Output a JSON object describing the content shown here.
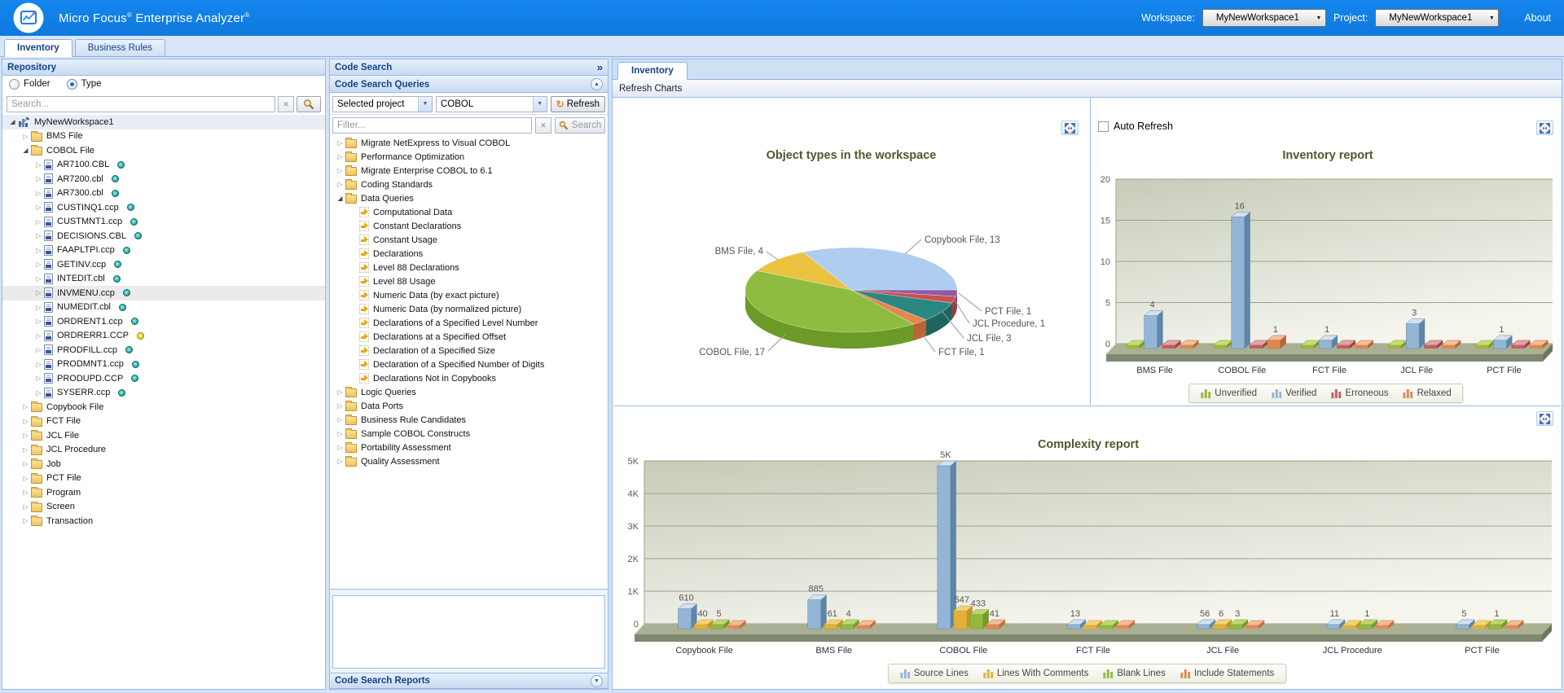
{
  "header": {
    "brand_a": "Micro Focus",
    "brand_b": "Enterprise Analyzer",
    "reg": "®",
    "workspace_label": "Workspace:",
    "workspace_value": "MyNewWorkspace1",
    "project_label": "Project:",
    "project_value": "MyNewWorkspace1",
    "about_label": "About"
  },
  "main_tabs": [
    {
      "label": "Inventory",
      "active": true
    },
    {
      "label": "Business Rules",
      "active": false
    }
  ],
  "repository": {
    "title": "Repository",
    "radios": [
      {
        "label": "Folder",
        "selected": false
      },
      {
        "label": "Type",
        "selected": true
      }
    ],
    "search_placeholder": "Search...",
    "tree": [
      {
        "label": "MyNewWorkspace1",
        "level": 0,
        "icon": "workspace",
        "expand": "open",
        "sel": "ws"
      },
      {
        "label": "BMS File",
        "level": 1,
        "icon": "folder",
        "expand": "closed"
      },
      {
        "label": "COBOL File",
        "level": 1,
        "icon": "folder",
        "expand": "open"
      },
      {
        "label": "AR7100.CBL",
        "level": 2,
        "icon": "file",
        "expand": "closed",
        "dot": "teal"
      },
      {
        "label": "AR7200.cbl",
        "level": 2,
        "icon": "file",
        "expand": "closed",
        "dot": "teal"
      },
      {
        "label": "AR7300.cbl",
        "level": 2,
        "icon": "file",
        "expand": "closed",
        "dot": "teal"
      },
      {
        "label": "CUSTINQ1.ccp",
        "level": 2,
        "icon": "file",
        "expand": "closed",
        "dot": "teal"
      },
      {
        "label": "CUSTMNT1.ccp",
        "level": 2,
        "icon": "file",
        "expand": "closed",
        "dot": "teal"
      },
      {
        "label": "DECISIONS.CBL",
        "level": 2,
        "icon": "file",
        "expand": "closed",
        "dot": "teal"
      },
      {
        "label": "FAAPLTPI.ccp",
        "level": 2,
        "icon": "file",
        "expand": "closed",
        "dot": "teal"
      },
      {
        "label": "GETINV.ccp",
        "level": 2,
        "icon": "file",
        "expand": "closed",
        "dot": "teal"
      },
      {
        "label": "INTEDIT.cbl",
        "level": 2,
        "icon": "file",
        "expand": "closed",
        "dot": "teal"
      },
      {
        "label": "INVMENU.ccp",
        "level": 2,
        "icon": "file",
        "expand": "closed",
        "dot": "teal",
        "sel": "item"
      },
      {
        "label": "NUMEDIT.cbl",
        "level": 2,
        "icon": "file",
        "expand": "closed",
        "dot": "teal"
      },
      {
        "label": "ORDRENT1.ccp",
        "level": 2,
        "icon": "file",
        "expand": "closed",
        "dot": "teal"
      },
      {
        "label": "ORDRERR1.CCP",
        "level": 2,
        "icon": "file",
        "expand": "closed",
        "dot": "yellow"
      },
      {
        "label": "PRODFILL.ccp",
        "level": 2,
        "icon": "file",
        "expand": "closed",
        "dot": "teal"
      },
      {
        "label": "PRODMNT1.ccp",
        "level": 2,
        "icon": "file",
        "expand": "closed",
        "dot": "teal"
      },
      {
        "label": "PRODUPD.CCP",
        "level": 2,
        "icon": "file",
        "expand": "closed",
        "dot": "teal"
      },
      {
        "label": "SYSERR.ccp",
        "level": 2,
        "icon": "file",
        "expand": "closed",
        "dot": "teal"
      },
      {
        "label": "Copybook File",
        "level": 1,
        "icon": "folder",
        "expand": "closed"
      },
      {
        "label": "FCT File",
        "level": 1,
        "icon": "folder",
        "expand": "closed"
      },
      {
        "label": "JCL File",
        "level": 1,
        "icon": "folder",
        "expand": "closed"
      },
      {
        "label": "JCL Procedure",
        "level": 1,
        "icon": "folder",
        "expand": "closed"
      },
      {
        "label": "Job",
        "level": 1,
        "icon": "folder",
        "expand": "closed"
      },
      {
        "label": "PCT File",
        "level": 1,
        "icon": "folder",
        "expand": "closed"
      },
      {
        "label": "Program",
        "level": 1,
        "icon": "folder",
        "expand": "closed"
      },
      {
        "label": "Screen",
        "level": 1,
        "icon": "folder",
        "expand": "closed"
      },
      {
        "label": "Transaction",
        "level": 1,
        "icon": "folder",
        "expand": "closed"
      }
    ]
  },
  "code_search": {
    "title": "Code Search",
    "queries_title": "Code Search Queries",
    "project_dropdown_value": "Selected project",
    "language_dropdown_value": "COBOL",
    "refresh_label": "Refresh",
    "filter_placeholder": "Filter...",
    "search_label": "Search",
    "reports_title": "Code Search Reports",
    "tree": [
      {
        "label": "Migrate NetExpress to Visual COBOL",
        "level": 0,
        "icon": "folder",
        "expand": "closed"
      },
      {
        "label": "Performance Optimization",
        "level": 0,
        "icon": "folder",
        "expand": "closed"
      },
      {
        "label": "Migrate Enterprise COBOL to 6.1",
        "level": 0,
        "icon": "folder",
        "expand": "closed"
      },
      {
        "label": "Coding Standards",
        "level": 0,
        "icon": "folder",
        "expand": "closed"
      },
      {
        "label": "Data Queries",
        "level": 0,
        "icon": "folder",
        "expand": "open"
      },
      {
        "label": "Computational Data",
        "level": 1,
        "icon": "query",
        "expand": "none"
      },
      {
        "label": "Constant Declarations",
        "level": 1,
        "icon": "query",
        "expand": "none"
      },
      {
        "label": "Constant Usage",
        "level": 1,
        "icon": "query",
        "expand": "none"
      },
      {
        "label": "Declarations",
        "level": 1,
        "icon": "query",
        "expand": "none"
      },
      {
        "label": "Level 88 Declarations",
        "level": 1,
        "icon": "query",
        "expand": "none"
      },
      {
        "label": "Level 88 Usage",
        "level": 1,
        "icon": "query",
        "expand": "none"
      },
      {
        "label": "Numeric Data (by exact picture)",
        "level": 1,
        "icon": "query",
        "expand": "none"
      },
      {
        "label": "Numeric Data (by normalized picture)",
        "level": 1,
        "icon": "query",
        "expand": "none"
      },
      {
        "label": "Declarations of a Specified Level Number",
        "level": 1,
        "icon": "query",
        "expand": "none"
      },
      {
        "label": "Declarations at a Specified Offset",
        "level": 1,
        "icon": "query",
        "expand": "none"
      },
      {
        "label": "Declaration of a Specified Size",
        "level": 1,
        "icon": "query",
        "expand": "none"
      },
      {
        "label": "Declaration of a Specified Number of Digits",
        "level": 1,
        "icon": "query",
        "expand": "none"
      },
      {
        "label": "Declarations Not in Copybooks",
        "level": 1,
        "icon": "query",
        "expand": "none"
      },
      {
        "label": "Logic Queries",
        "level": 0,
        "icon": "folder",
        "expand": "closed"
      },
      {
        "label": "Data Ports",
        "level": 0,
        "icon": "folder",
        "expand": "closed"
      },
      {
        "label": "Business Rule Candidates",
        "level": 0,
        "icon": "folder",
        "expand": "closed"
      },
      {
        "label": "Sample COBOL Constructs",
        "level": 0,
        "icon": "folder",
        "expand": "closed"
      },
      {
        "label": "Portability Assessment",
        "level": 0,
        "icon": "folder",
        "expand": "closed"
      },
      {
        "label": "Quality Assessment",
        "level": 0,
        "icon": "folder",
        "expand": "closed"
      }
    ]
  },
  "inventory_panel": {
    "tab": "Inventory",
    "toolbar": "Refresh Charts",
    "auto_refresh_label": "Auto Refresh"
  },
  "chart_data": [
    {
      "type": "pie",
      "title": "Object types in the workspace",
      "slices": [
        {
          "label": "PCT File",
          "value": 1,
          "color": "#8e5ba6",
          "dark": "#6d4385"
        },
        {
          "label": "JCL Procedure",
          "value": 1,
          "color": "#c95150",
          "dark": "#9e3c3b"
        },
        {
          "label": "JCL File",
          "value": 3,
          "color": "#2b8781",
          "dark": "#1e6560"
        },
        {
          "label": "FCT File",
          "value": 1,
          "color": "#e28750",
          "dark": "#b96436"
        },
        {
          "label": "COBOL File",
          "value": 17,
          "color": "#8dbc40",
          "dark": "#6c9a28"
        },
        {
          "label": "BMS File",
          "value": 4,
          "color": "#eac23f",
          "dark": "#c49a22"
        },
        {
          "label": "Copybook File",
          "value": 13,
          "color": "#aecdf0",
          "dark": "#86a8cc"
        }
      ]
    },
    {
      "type": "bar",
      "title": "Inventory report",
      "categories": [
        "BMS File",
        "COBOL File",
        "FCT File",
        "JCL File",
        "PCT File"
      ],
      "ylim": [
        0,
        20
      ],
      "ytick_labels": [
        "0",
        "5",
        "10",
        "15",
        "20"
      ],
      "grid": true,
      "legend_position": "bottom",
      "series": [
        {
          "name": "Unverified",
          "values": [
            0,
            0,
            0,
            0,
            0
          ],
          "color": {
            "light": "#c8dc74",
            "main": "#9ab83c",
            "dark": "#7a9a2a"
          }
        },
        {
          "name": "Verified",
          "values": [
            4,
            16,
            1,
            3,
            1
          ],
          "color": {
            "light": "#d3e2f0",
            "main": "#94b6d6",
            "dark": "#5f85a8"
          }
        },
        {
          "name": "Erroneous",
          "values": [
            0,
            0,
            0,
            0,
            0
          ],
          "color": {
            "light": "#e2a4a4",
            "main": "#c25f5f",
            "dark": "#9e4444"
          }
        },
        {
          "name": "Relaxed",
          "values": [
            0,
            1,
            0,
            0,
            0
          ],
          "color": {
            "light": "#f2c098",
            "main": "#dd8850",
            "dark": "#b96436"
          }
        }
      ]
    },
    {
      "type": "bar",
      "title": "Complexity report",
      "categories": [
        "Copybook File",
        "BMS File",
        "COBOL File",
        "FCT File",
        "JCL File",
        "JCL Procedure",
        "PCT File"
      ],
      "ylim": [
        0,
        5000
      ],
      "ytick_labels": [
        "0",
        "1K",
        "2K",
        "3K",
        "4K",
        "5K"
      ],
      "grid": true,
      "legend_position": "bottom",
      "series": [
        {
          "name": "Source Lines",
          "values": [
            610,
            885,
            5000,
            13,
            56,
            11,
            5
          ],
          "color": {
            "light": "#d3e2f0",
            "main": "#94b6d6",
            "dark": "#5f85a8"
          }
        },
        {
          "name": "Lines With Comments",
          "values": [
            40,
            61,
            547,
            0,
            6,
            0,
            0
          ],
          "color": {
            "light": "#f2d376",
            "main": "#e0b23c",
            "dark": "#c3962a"
          }
        },
        {
          "name": "Blank Lines",
          "values": [
            5,
            4,
            433,
            0,
            3,
            1,
            1
          ],
          "color": {
            "light": "#bdd873",
            "main": "#94b83f",
            "dark": "#76992c"
          }
        },
        {
          "name": "Include Statements",
          "values": [
            0,
            0,
            41,
            0,
            0,
            0,
            0
          ],
          "color": {
            "light": "#f4bc94",
            "main": "#e08a5a",
            "dark": "#c26e40"
          }
        }
      ]
    }
  ]
}
